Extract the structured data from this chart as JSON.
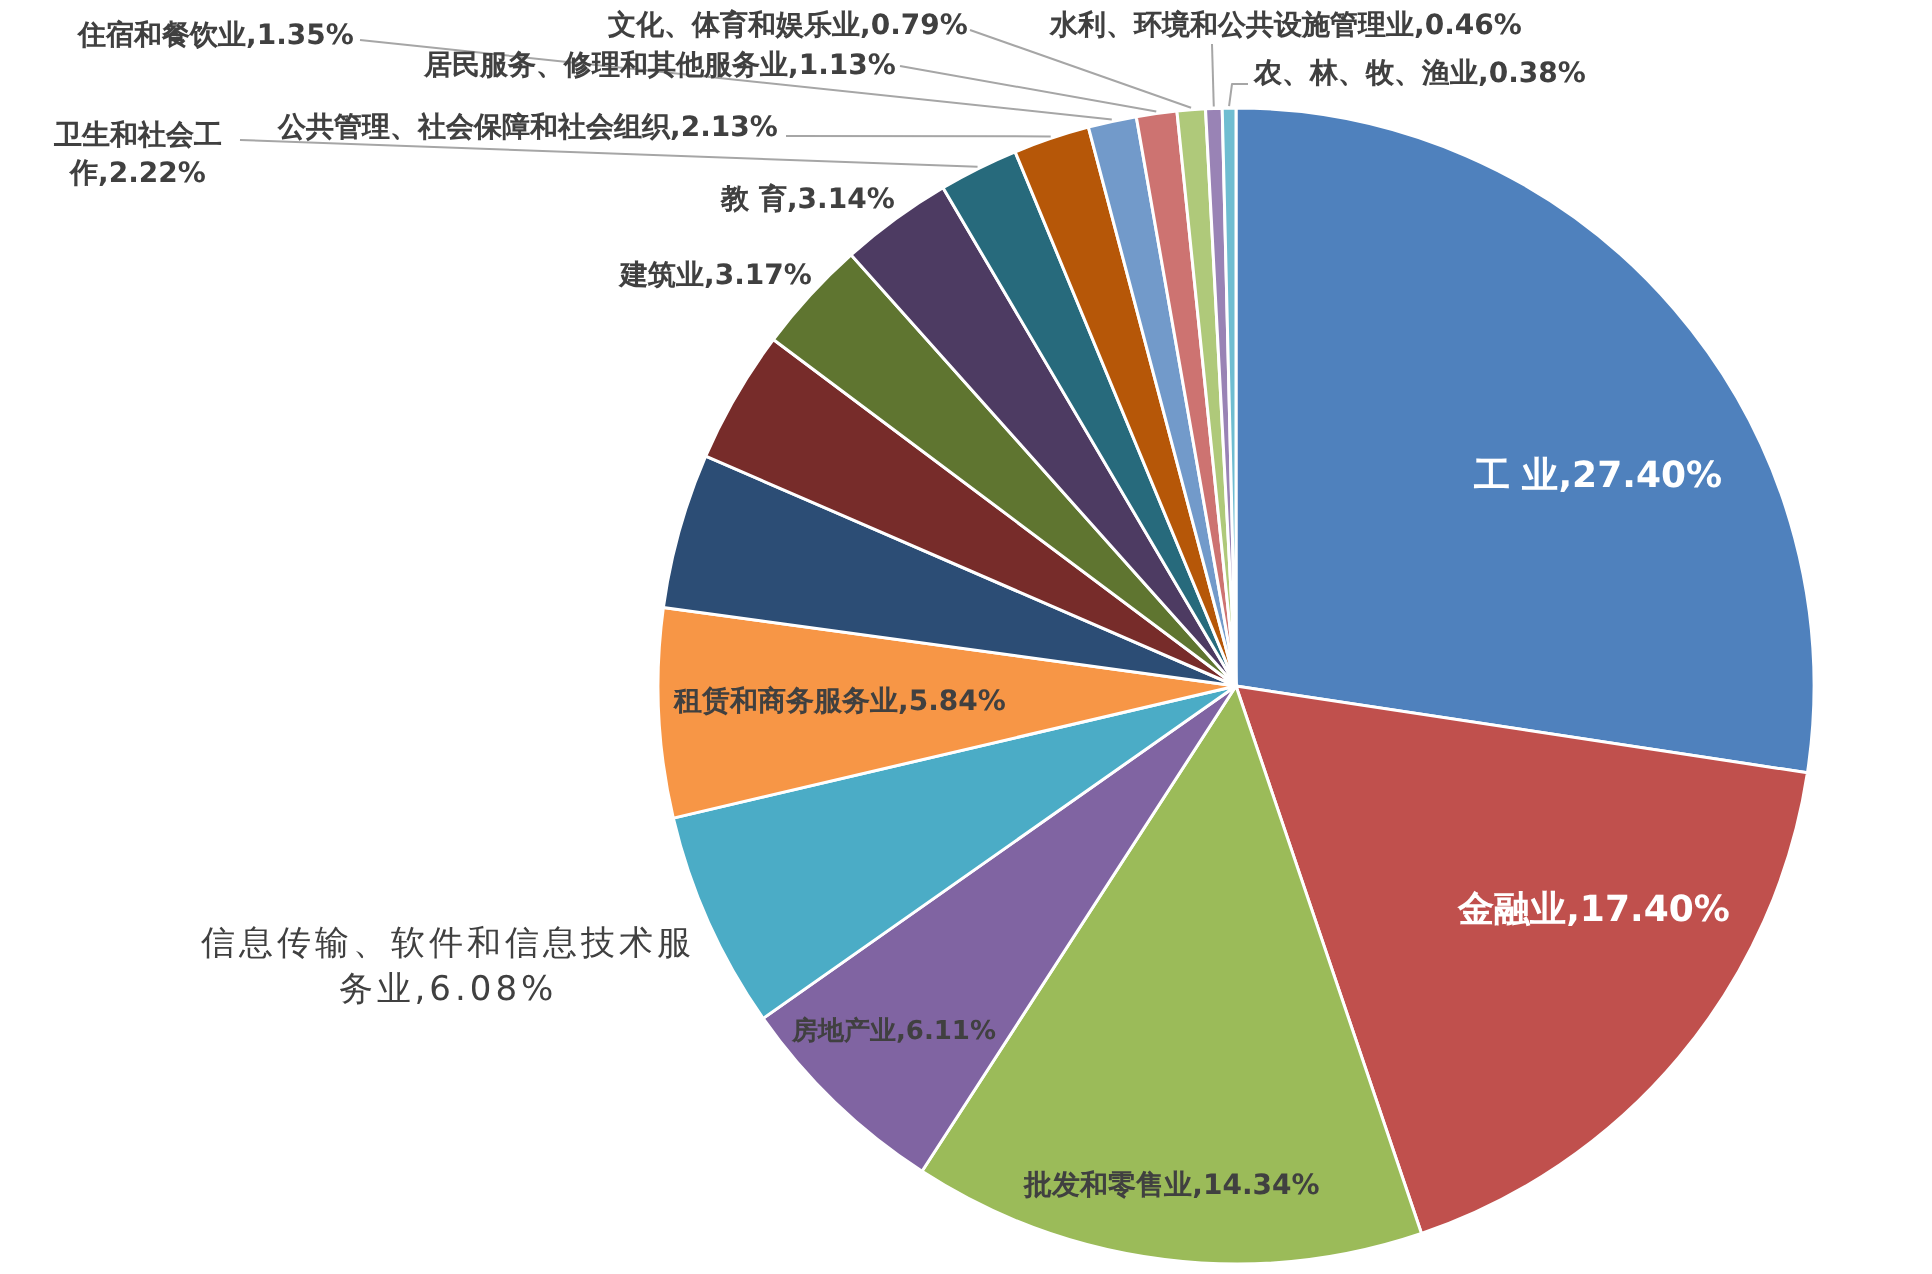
{
  "chart_data": {
    "type": "pie",
    "categories": [
      "工 业",
      "金融业",
      "批发和零售业",
      "房地产业",
      "信息传输、软件和信息技术服务业",
      "租赁和商务服务业",
      null,
      null,
      "建筑业",
      "教 育",
      "卫生和社会工作",
      "公共管理、社会保障和社会组织",
      "住宿和餐饮业",
      "居民服务、修理和其他服务业",
      "文化、体育和娱乐业",
      "水利、环境和公共设施管理业",
      "农、林、牧、渔业"
    ],
    "values": [
      27.4,
      17.4,
      14.34,
      6.11,
      6.08,
      5.84,
      4.34,
      3.72,
      3.17,
      3.14,
      2.22,
      2.13,
      1.35,
      1.13,
      0.79,
      0.46,
      0.38
    ],
    "colors": [
      "#4f81bd",
      "#c0504d",
      "#9bbb59",
      "#8064a2",
      "#4bacc6",
      "#f79646",
      "#2c4d75",
      "#772c2a",
      "#5f7530",
      "#4d3b62",
      "#276a7c",
      "#b65708",
      "#729aca",
      "#cd7371",
      "#afc97a",
      "#9983b5",
      "#6fbdd1"
    ],
    "value_labels": [
      "27.40%",
      "17.40%",
      "14.34%",
      "6.11%",
      "6.08%",
      "5.84%",
      null,
      null,
      "3.17%",
      "3.14%",
      "2.22%",
      "2.13%",
      "1.35%",
      "1.13%",
      "0.79%",
      "0.46%",
      "0.38%"
    ]
  }
}
